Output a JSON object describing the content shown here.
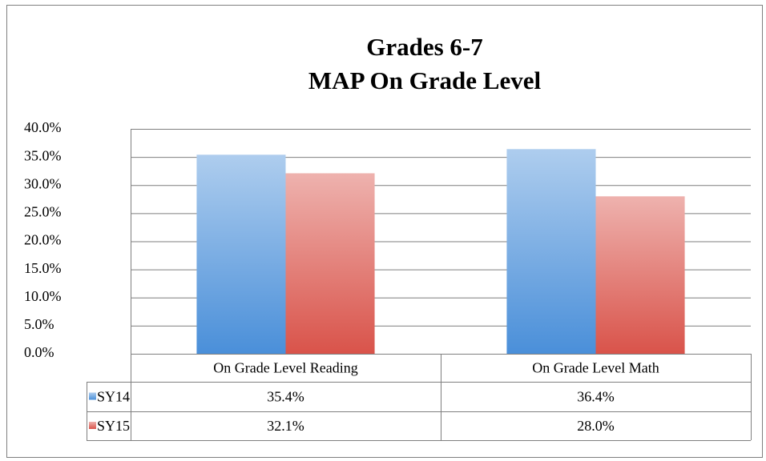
{
  "chart_data": {
    "type": "bar",
    "title": "Grades 6-7",
    "subtitle": "MAP On Grade Level",
    "categories": [
      "On Grade Level Reading",
      "On Grade Level Math"
    ],
    "series": [
      {
        "name": "SY14",
        "color": "#4a8fd9",
        "values": [
          35.4,
          36.4
        ],
        "value_labels": [
          "35.4%",
          "36.4%"
        ]
      },
      {
        "name": "SY15",
        "color": "#d9534a",
        "values": [
          32.1,
          28.0
        ],
        "value_labels": [
          "32.1%",
          "28.0%"
        ]
      }
    ],
    "ylim": [
      0,
      40
    ],
    "yticks": [
      {
        "value": 0,
        "label": "0.0%"
      },
      {
        "value": 5,
        "label": "5.0%"
      },
      {
        "value": 10,
        "label": "10.0%"
      },
      {
        "value": 15,
        "label": "15.0%"
      },
      {
        "value": 20,
        "label": "20.0%"
      },
      {
        "value": 25,
        "label": "25.0%"
      },
      {
        "value": 30,
        "label": "30.0%"
      },
      {
        "value": 35,
        "label": "35.0%"
      },
      {
        "value": 40,
        "label": "40.0%"
      }
    ],
    "grid": true,
    "data_table": true
  }
}
